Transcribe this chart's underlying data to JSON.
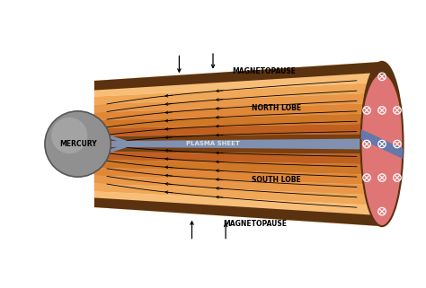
{
  "background_color": "#ffffff",
  "mercury_color": "#909090",
  "mercury_edge_color": "#555555",
  "magnetopause_color": "#5a3210",
  "lobe_colors_outer_to_inner": [
    "#7a4010",
    "#c06020",
    "#d07828",
    "#e08838",
    "#e89848",
    "#f0a858",
    "#f8be78",
    "#fdd090"
  ],
  "plasma_sheet_color": "#8090b0",
  "cross_section_bg": "#e07575",
  "cross_section_edge": "#5a3210",
  "dot_color": "#ffffff",
  "stripe_color": "#6677aa",
  "north_lobe_label": "NORTH LOBE",
  "south_lobe_label": "SOUTH LOBE",
  "plasma_sheet_label": "PLASMA SHEET",
  "magnetopause_label": "MAGNETOPAUSE",
  "mercury_label": "MERCURY",
  "label_color": "#111111",
  "plasma_label_color": "#dddddd"
}
